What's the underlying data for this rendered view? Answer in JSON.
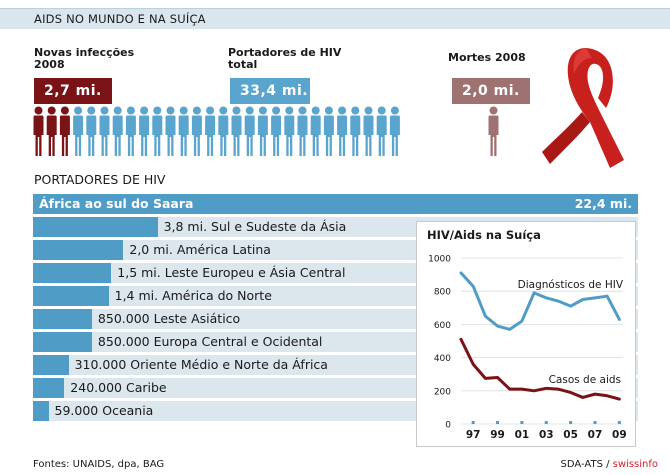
{
  "header": {
    "title": "AIDS NO MUNDO E NA SUÍÇA"
  },
  "stats": [
    {
      "label_line1": "Novas infecções",
      "label_line2": "2008",
      "value": "2,7  mi.",
      "color": "#7a1316"
    },
    {
      "label_line1": "Portadores de HIV",
      "label_line2": "total",
      "value": "33,4  mi.",
      "color": "#5aa5cd"
    },
    {
      "label_line1": "Mortes 2008",
      "label_line2": "",
      "value": "2,0  mi.",
      "color": "#9e7271"
    }
  ],
  "people": {
    "dark_count": 3,
    "blue_count": 25,
    "gray_count": 1,
    "dark_color": "#7a1316",
    "blue_color": "#5aa5cd",
    "gray_color": "#9e7271"
  },
  "section": {
    "title": "PORTADORES DE HIV"
  },
  "regions": {
    "top": {
      "label": "África ao sul do Saara",
      "value_text": "22,4 mi.",
      "value": 22.4
    },
    "items": [
      {
        "label": "3,8 mi. Sul e Sudeste da Ásia",
        "value": 3.8
      },
      {
        "label": "2,0 mi. América Latina",
        "value": 2.0
      },
      {
        "label": "1,5 mi. Leste Europeu e Ásia Central",
        "value": 1.5
      },
      {
        "label": "1,4 mi. América do Norte",
        "value": 1.4
      },
      {
        "label": "850.000 Leste Asiático",
        "value": 0.85
      },
      {
        "label": "850.000 Europa Central e Ocidental",
        "value": 0.85
      },
      {
        "label": "310.000 Oriente Médio e Norte da África",
        "value": 0.31
      },
      {
        "label": "240.000 Caribe",
        "value": 0.24
      },
      {
        "label": "59.000 Oceania",
        "value": 0.059
      }
    ],
    "bar_color": "#4f9cc7",
    "track_color": "#dce6ed"
  },
  "chart_data": {
    "type": "line",
    "title": "HIV/Aids na Suíça",
    "x": [
      1996,
      1997,
      1998,
      1999,
      2000,
      2001,
      2002,
      2003,
      2004,
      2005,
      2006,
      2007,
      2008,
      2009
    ],
    "xticks": [
      "97",
      "99",
      "01",
      "03",
      "05",
      "07",
      "09"
    ],
    "xtick_values": [
      1997,
      1999,
      2001,
      2003,
      2005,
      2007,
      2009
    ],
    "yticks": [
      0,
      200,
      400,
      600,
      800,
      1000
    ],
    "ylim": [
      0,
      1000
    ],
    "series": [
      {
        "name": "Diagnósticos de HIV",
        "color": "#4f9cc7",
        "values": [
          910,
          830,
          650,
          590,
          570,
          620,
          790,
          760,
          740,
          710,
          750,
          760,
          770,
          630
        ]
      },
      {
        "name": "Casos de aids",
        "color": "#7a1316",
        "values": [
          510,
          360,
          275,
          280,
          210,
          210,
          200,
          215,
          210,
          190,
          160,
          180,
          170,
          150
        ]
      }
    ]
  },
  "footer": {
    "sources": "Fontes: UNAIDS, dpa, BAG",
    "credit_prefix": "SDA-ATS / ",
    "credit_brand": "swissinfo"
  }
}
